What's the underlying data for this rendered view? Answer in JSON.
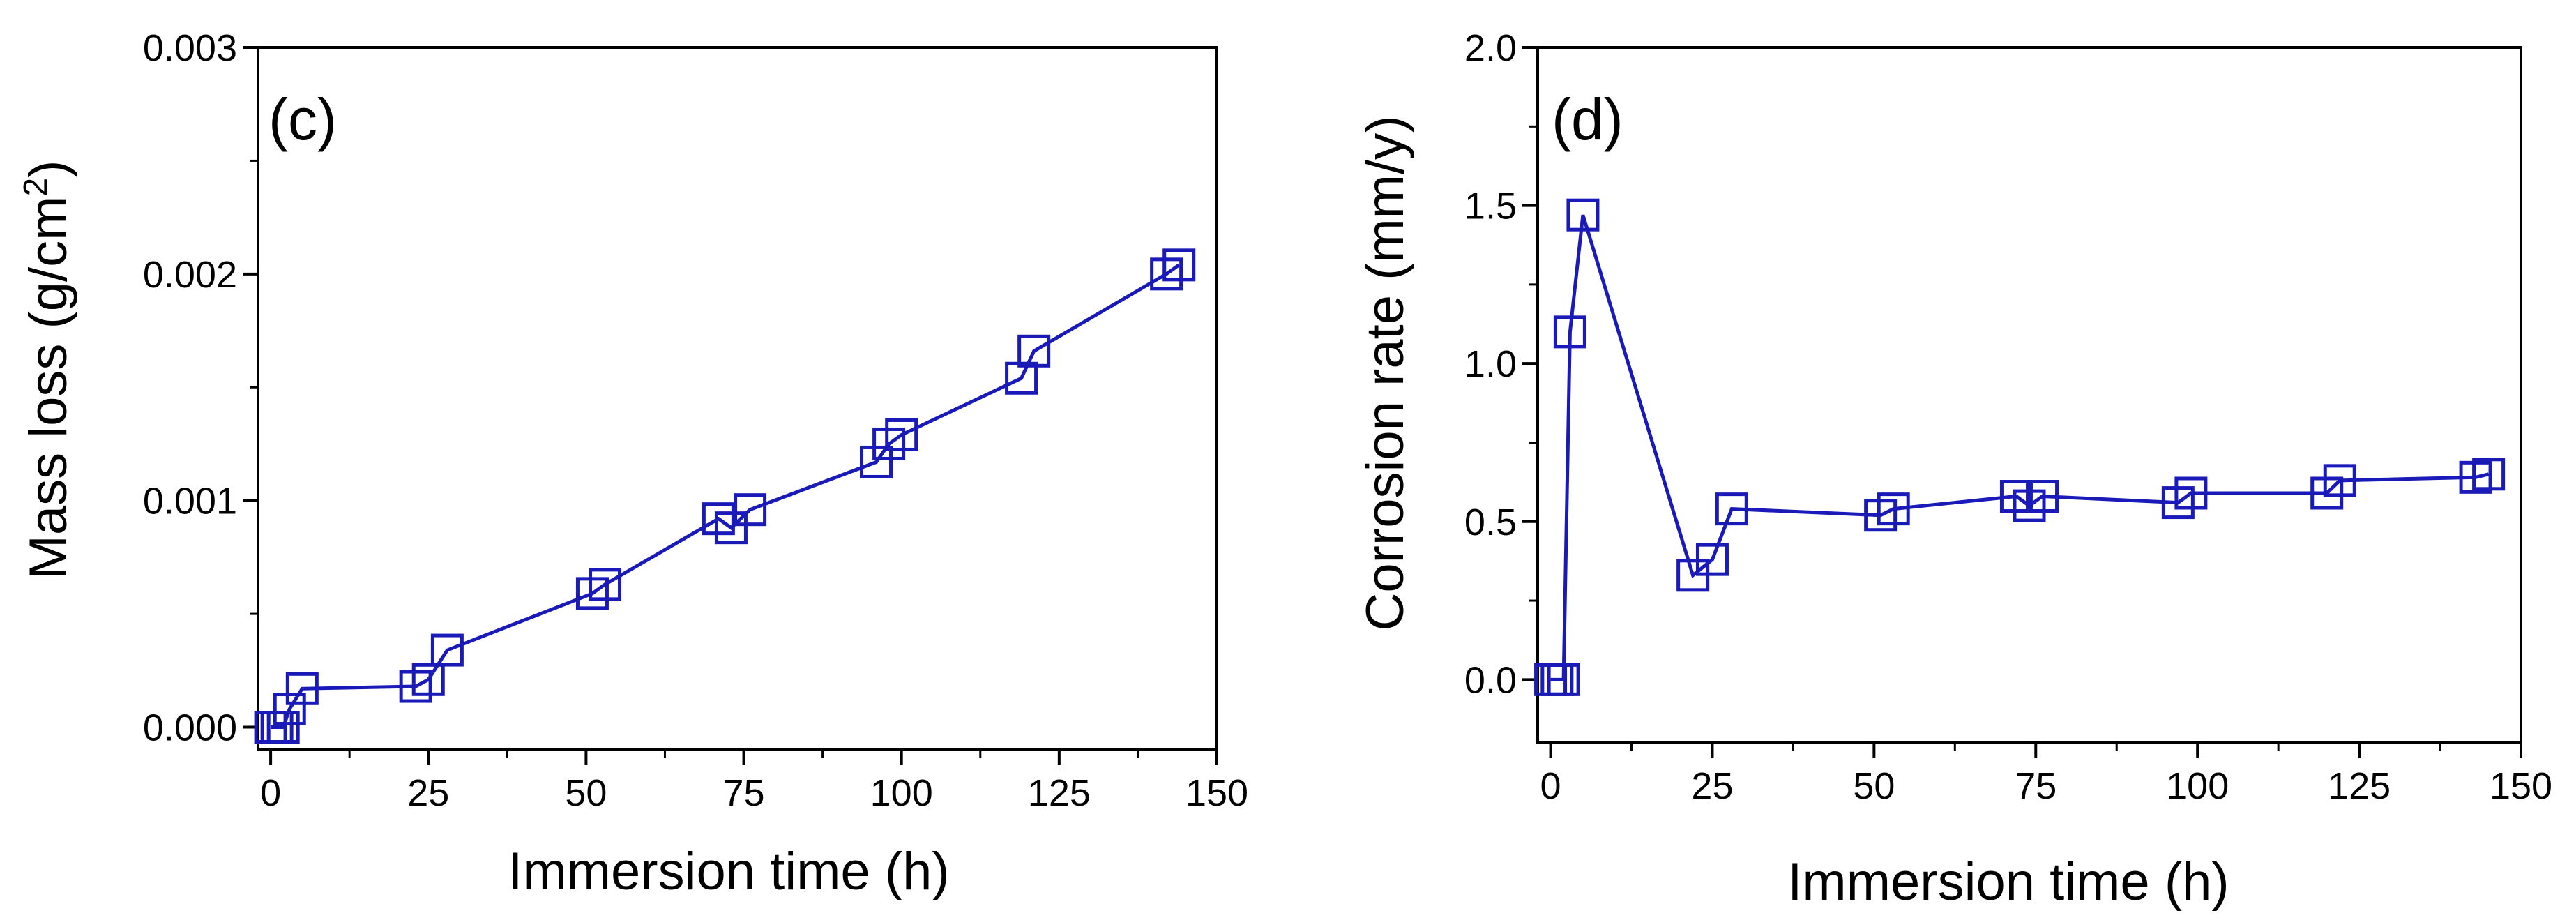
{
  "chart_data": [
    {
      "type": "line",
      "panel_label": "(c)",
      "xlabel": "Immersion time (h)",
      "ylabel_main": "Mass loss (g/cm",
      "ylabel_sup": "2",
      "ylabel_close": ")",
      "xlim": [
        -2,
        150
      ],
      "ylim": [
        -0.0001,
        0.003
      ],
      "xticks": [
        0,
        25,
        50,
        75,
        100,
        125,
        150
      ],
      "xtick_labels": [
        "0",
        "25",
        "50",
        "75",
        "100",
        "125",
        "150"
      ],
      "yticks": [
        0.0,
        0.001,
        0.002,
        0.003
      ],
      "ytick_labels": [
        "0.000",
        "0.001",
        "0.002",
        "0.003"
      ],
      "grid": false,
      "marker": "open-square",
      "color": "#1a1ab8",
      "series": [
        {
          "name": "Mass loss",
          "x": [
            0,
            1,
            2,
            3,
            5,
            23,
            25,
            28,
            51,
            53,
            71,
            73,
            76,
            96,
            98,
            100,
            119,
            121,
            142,
            144
          ],
          "values": [
            0.0,
            0.0,
            0.0,
            8e-05,
            0.00017,
            0.00018,
            0.00021,
            0.00034,
            0.00059,
            0.00063,
            0.00092,
            0.00088,
            0.00096,
            0.00117,
            0.00125,
            0.00129,
            0.00154,
            0.00166,
            0.002,
            0.00204
          ]
        }
      ]
    },
    {
      "type": "line",
      "panel_label": "(d)",
      "xlabel": "Immersion time (h)",
      "ylabel": "Corrosion rate (mm/y)",
      "xlim": [
        -2,
        150
      ],
      "ylim": [
        -0.2,
        2.0
      ],
      "xticks": [
        0,
        25,
        50,
        75,
        100,
        125,
        150
      ],
      "xtick_labels": [
        "0",
        "25",
        "50",
        "75",
        "100",
        "125",
        "150"
      ],
      "yticks": [
        0.0,
        0.5,
        1.0,
        1.5,
        2.0
      ],
      "ytick_labels": [
        "0.0",
        "0.5",
        "1.0",
        "1.5",
        "2.0"
      ],
      "grid": false,
      "marker": "open-square",
      "color": "#1a1ab8",
      "series": [
        {
          "name": "Corrosion rate",
          "x": [
            0,
            1,
            2,
            3,
            5,
            22,
            25,
            28,
            51,
            53,
            72,
            74,
            76,
            97,
            99,
            120,
            122,
            143,
            145
          ],
          "values": [
            0.0,
            0.0,
            0.0,
            1.1,
            1.47,
            0.33,
            0.38,
            0.54,
            0.52,
            0.54,
            0.58,
            0.55,
            0.58,
            0.56,
            0.59,
            0.59,
            0.63,
            0.64,
            0.65
          ]
        }
      ]
    }
  ]
}
